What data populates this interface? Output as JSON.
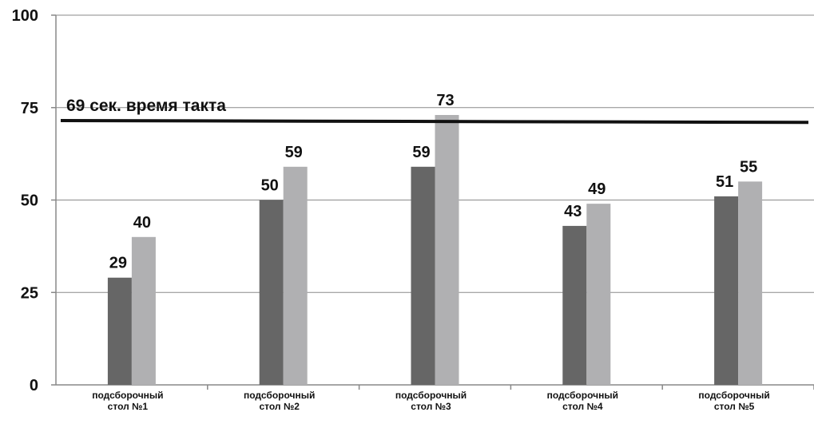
{
  "chart_data": {
    "type": "bar",
    "categories": [
      [
        "подсборочный",
        "стол №1"
      ],
      [
        "подсборочный",
        "стол №2"
      ],
      [
        "подсборочный",
        "стол №3"
      ],
      [
        "подсборочный",
        "стол №4"
      ],
      [
        "подсборочный",
        "стол №5"
      ]
    ],
    "series": [
      {
        "values": [
          29,
          50,
          59,
          43,
          51
        ],
        "color": "#666666"
      },
      {
        "values": [
          40,
          59,
          73,
          49,
          55
        ],
        "color": "#b0b0b2"
      }
    ],
    "ylim": [
      0,
      100
    ],
    "yticks": [
      0,
      25,
      50,
      75,
      100
    ],
    "grid": true,
    "reference_line": {
      "label": "69 сек. время такта",
      "y_start": 71.5,
      "y_end": 71,
      "color": "#111111"
    }
  }
}
